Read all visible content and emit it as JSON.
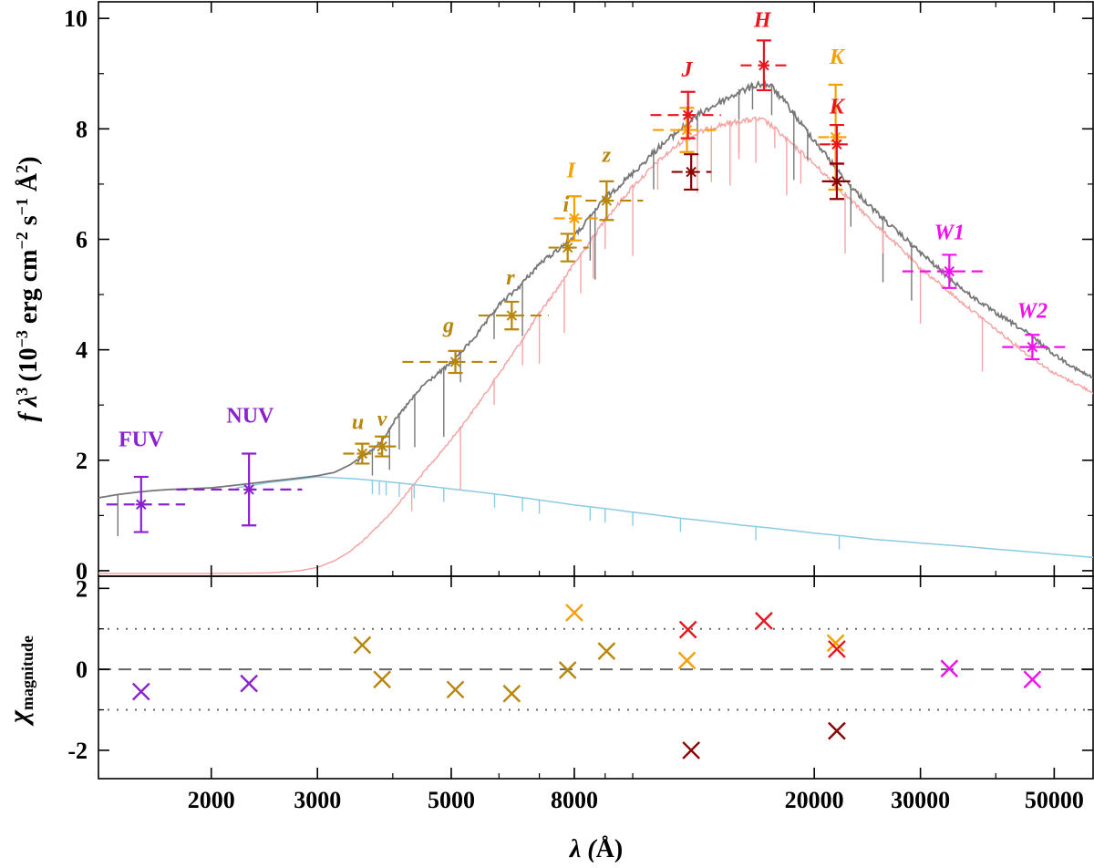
{
  "chart_data": {
    "type": "scatter",
    "description_free": true,
    "colors": {
      "uv": "#8b20d0",
      "optical": "#b8860b",
      "orange": "#f5a000",
      "red": "#e8141e",
      "darkred": "#8b0000",
      "magenta": "#ee11ee",
      "composite": "#777777",
      "cool": "#f4a4a4",
      "hot": "#8ccbe4",
      "guide": "#666666"
    },
    "xaxis": {
      "label_pre": "λ (",
      "label_unit": "Å",
      "label_post": ")",
      "scale": "log",
      "range": [
        1300,
        58000
      ],
      "ticks": [
        {
          "value": 2000,
          "label": "2000"
        },
        {
          "value": 3000,
          "label": "3000"
        },
        {
          "value": 5000,
          "label": "5000"
        },
        {
          "value": 8000,
          "label": "8000"
        },
        {
          "value": 20000,
          "label": "20000"
        },
        {
          "value": 30000,
          "label": "30000"
        },
        {
          "value": 50000,
          "label": "50000"
        }
      ]
    },
    "top_panel": {
      "ylabel": {
        "main": "f λ",
        "exp3": "3",
        "paren": "(10",
        "exp_neg3": "−3",
        "unit1": " erg cm",
        "exp_neg2": "−2",
        "unit2": " s",
        "exp_neg1": "−1",
        "unit3": " Å",
        "exp2": "2",
        "close": ")"
      },
      "ylim": [
        -0.1,
        10.3
      ],
      "yticks": [
        {
          "value": 0,
          "label": "0"
        },
        {
          "value": 2,
          "label": "2"
        },
        {
          "value": 4,
          "label": "4"
        },
        {
          "value": 6,
          "label": "6"
        },
        {
          "value": 8,
          "label": "8"
        },
        {
          "value": 10,
          "label": "10"
        }
      ],
      "models": [
        {
          "name": "composite",
          "color_key": "composite",
          "x": [
            1300,
            1350,
            1400,
            1450,
            1500,
            1600,
            1700,
            1800,
            2000,
            2200,
            2500,
            2800,
            3000,
            3200,
            3400,
            3500,
            3600,
            3700,
            3800,
            3900,
            4000,
            4200,
            4500,
            5000,
            5500,
            6000,
            6500,
            7000,
            7500,
            8000,
            8500,
            9000,
            10000,
            11000,
            12000,
            13000,
            14000,
            15000,
            16000,
            16500,
            17000,
            18000,
            19000,
            20000,
            21000,
            22000,
            23000,
            24000,
            25000,
            27000,
            30000,
            33000,
            36000,
            40000,
            45000,
            50000,
            55000,
            58000
          ],
          "y": [
            1.32,
            1.35,
            1.38,
            1.4,
            1.42,
            1.45,
            1.47,
            1.48,
            1.5,
            1.55,
            1.62,
            1.68,
            1.72,
            1.78,
            1.92,
            2.02,
            2.12,
            2.22,
            2.32,
            2.5,
            2.7,
            3.0,
            3.4,
            3.8,
            4.3,
            4.85,
            5.2,
            5.6,
            5.85,
            6.1,
            6.45,
            6.8,
            7.25,
            7.7,
            8.05,
            8.35,
            8.55,
            8.72,
            8.85,
            8.88,
            8.82,
            8.5,
            8.15,
            7.85,
            7.55,
            7.25,
            7.0,
            6.8,
            6.6,
            6.25,
            5.8,
            5.4,
            5.05,
            4.7,
            4.35,
            3.95,
            3.65,
            3.52
          ]
        },
        {
          "name": "cool-component",
          "color_key": "cool",
          "x": [
            1300,
            2000,
            2500,
            2800,
            3000,
            3200,
            3400,
            3600,
            3800,
            4000,
            4200,
            4500,
            5000,
            5500,
            6000,
            7000,
            8000,
            9000,
            10000,
            11000,
            12000,
            13000,
            14000,
            15000,
            16000,
            16500,
            17000,
            18000,
            20000,
            22000,
            25000,
            30000,
            35000,
            40000,
            45000,
            50000,
            58000
          ],
          "y": [
            -0.05,
            -0.05,
            -0.04,
            0.0,
            0.06,
            0.18,
            0.35,
            0.6,
            0.85,
            1.1,
            1.4,
            1.8,
            2.4,
            3.0,
            3.6,
            4.7,
            5.6,
            6.4,
            7.0,
            7.45,
            7.8,
            8.0,
            8.12,
            8.18,
            8.22,
            8.2,
            8.1,
            7.85,
            7.4,
            6.95,
            6.35,
            5.5,
            4.9,
            4.4,
            3.95,
            3.6,
            3.25
          ]
        },
        {
          "name": "hot-component",
          "color_key": "hot",
          "x": [
            2200,
            2500,
            3000,
            3500,
            4000,
            4500,
            5000,
            6000,
            7000,
            8000,
            10000,
            12000,
            15000,
            20000,
            25000,
            30000,
            40000,
            50000,
            58000
          ],
          "y": [
            1.5,
            1.6,
            1.7,
            1.66,
            1.6,
            1.54,
            1.48,
            1.38,
            1.28,
            1.19,
            1.06,
            0.95,
            0.83,
            0.68,
            0.57,
            0.5,
            0.39,
            0.3,
            0.24
          ]
        }
      ],
      "photometry": [
        {
          "band": "FUV",
          "color_key": "uv",
          "x": 1530,
          "y": 1.2,
          "yerr": 0.5,
          "xlo": 1340,
          "xhi": 1810,
          "label": "FUV",
          "label_italic": false,
          "lx": 1530,
          "ly": 2.25
        },
        {
          "band": "NUV",
          "color_key": "uv",
          "x": 2310,
          "y": 1.47,
          "yerr": 0.65,
          "xlo": 1750,
          "xhi": 2830,
          "label": "NUV",
          "label_italic": false,
          "lx": 2320,
          "ly": 2.68
        },
        {
          "band": "u",
          "color_key": "optical",
          "x": 3560,
          "y": 2.12,
          "yerr": 0.18,
          "xlo": 3310,
          "xhi": 3830,
          "label": "u",
          "label_italic": true,
          "lx": 3500,
          "ly": 2.57
        },
        {
          "band": "v",
          "color_key": "optical",
          "x": 3840,
          "y": 2.25,
          "yerr": 0.18,
          "xlo": 3650,
          "xhi": 4050,
          "label": "v",
          "label_italic": true,
          "lx": 3840,
          "ly": 2.62
        },
        {
          "band": "g",
          "color_key": "optical",
          "x": 5080,
          "y": 3.78,
          "yerr": 0.2,
          "xlo": 4150,
          "xhi": 5950,
          "label": "g",
          "label_italic": true,
          "lx": 4950,
          "ly": 4.32
        },
        {
          "band": "r",
          "color_key": "optical",
          "x": 6300,
          "y": 4.62,
          "yerr": 0.25,
          "xlo": 5550,
          "xhi": 7250,
          "label": "r",
          "label_italic": true,
          "lx": 6270,
          "ly": 5.18
        },
        {
          "band": "i",
          "color_key": "optical",
          "x": 7800,
          "y": 5.85,
          "yerr": 0.25,
          "xlo": 7250,
          "xhi": 8450,
          "label": "i",
          "label_italic": true,
          "lx": 7750,
          "ly": 6.5
        },
        {
          "band": "z",
          "color_key": "optical",
          "x": 9050,
          "y": 6.7,
          "yerr": 0.35,
          "xlo": 8350,
          "xhi": 10400,
          "label": "z",
          "label_italic": true,
          "lx": 9050,
          "ly": 7.4
        },
        {
          "band": "I",
          "color_key": "orange",
          "x": 8000,
          "y": 6.38,
          "yerr": 0.4,
          "xlo": 7400,
          "xhi": 8750,
          "label": "I",
          "label_italic": true,
          "lx": 7900,
          "ly": 7.12
        },
        {
          "band": "J-orange",
          "color_key": "orange",
          "x": 12300,
          "y": 7.98,
          "yerr": 0.4,
          "xlo": 10800,
          "xhi": 13800,
          "label": "",
          "label_italic": true,
          "lx": 12300,
          "ly": 0
        },
        {
          "band": "J",
          "color_key": "red",
          "x": 12350,
          "y": 8.25,
          "yerr": 0.42,
          "xlo": 10700,
          "xhi": 14000,
          "label": "J",
          "label_italic": true,
          "lx": 12300,
          "ly": 8.95
        },
        {
          "band": "J-dark",
          "color_key": "darkred",
          "x": 12500,
          "y": 7.22,
          "yerr": 0.32,
          "xlo": 11600,
          "xhi": 13500,
          "label": "",
          "label_italic": true,
          "lx": 12500,
          "ly": 0
        },
        {
          "band": "H",
          "color_key": "red",
          "x": 16500,
          "y": 9.15,
          "yerr": 0.45,
          "xlo": 15100,
          "xhi": 18000,
          "label": "H",
          "label_italic": true,
          "lx": 16400,
          "ly": 9.85
        },
        {
          "band": "K-orange",
          "color_key": "orange",
          "x": 21700,
          "y": 7.85,
          "yerr": 0.95,
          "xlo": 20300,
          "xhi": 23000,
          "label": "K",
          "label_italic": true,
          "lx": 21800,
          "ly": 9.18
        },
        {
          "band": "K",
          "color_key": "red",
          "x": 21800,
          "y": 7.72,
          "yerr": 0.35,
          "xlo": 20400,
          "xhi": 23200,
          "label": "K",
          "label_italic": true,
          "lx": 21800,
          "ly": 8.28
        },
        {
          "band": "K-dark",
          "color_key": "darkred",
          "x": 21800,
          "y": 7.05,
          "yerr": 0.32,
          "xlo": 20600,
          "xhi": 23000,
          "label": "",
          "label_italic": true,
          "lx": 21800,
          "ly": 0
        },
        {
          "band": "W1",
          "color_key": "magenta",
          "x": 33500,
          "y": 5.42,
          "yerr": 0.3,
          "xlo": 28000,
          "xhi": 39000,
          "label": "W1",
          "label_italic": true,
          "lx": 33500,
          "ly": 6.0
        },
        {
          "band": "W2",
          "color_key": "magenta",
          "x": 46000,
          "y": 4.05,
          "yerr": 0.22,
          "xlo": 41000,
          "xhi": 53000,
          "label": "W2",
          "label_italic": true,
          "lx": 46000,
          "ly": 4.58
        }
      ]
    },
    "bottom_panel": {
      "ylabel_main": "χ",
      "ylabel_sub": "magnitude",
      "ylim": [
        -2.7,
        2.3
      ],
      "yticks": [
        {
          "value": 2,
          "label": "2"
        },
        {
          "value": 0,
          "label": "0"
        },
        {
          "value": -2,
          "label": "-2"
        }
      ],
      "guides": [
        {
          "y": 1,
          "style": "dotted"
        },
        {
          "y": 0,
          "style": "dashed"
        },
        {
          "y": -1,
          "style": "dotted"
        }
      ],
      "residuals": [
        {
          "band": "FUV",
          "color_key": "uv",
          "x": 1530,
          "y": -0.55
        },
        {
          "band": "NUV",
          "color_key": "uv",
          "x": 2310,
          "y": -0.35
        },
        {
          "band": "u",
          "color_key": "optical",
          "x": 3560,
          "y": 0.6
        },
        {
          "band": "v",
          "color_key": "optical",
          "x": 3840,
          "y": -0.25
        },
        {
          "band": "g",
          "color_key": "optical",
          "x": 5080,
          "y": -0.5
        },
        {
          "band": "r",
          "color_key": "optical",
          "x": 6300,
          "y": -0.6
        },
        {
          "band": "i",
          "color_key": "optical",
          "x": 7800,
          "y": -0.02
        },
        {
          "band": "z",
          "color_key": "optical",
          "x": 9050,
          "y": 0.45
        },
        {
          "band": "I",
          "color_key": "orange",
          "x": 8000,
          "y": 1.4
        },
        {
          "band": "J-orange",
          "color_key": "orange",
          "x": 12300,
          "y": 0.22
        },
        {
          "band": "J",
          "color_key": "red",
          "x": 12350,
          "y": 0.98
        },
        {
          "band": "J-dark",
          "color_key": "darkred",
          "x": 12500,
          "y": -2.0
        },
        {
          "band": "H",
          "color_key": "red",
          "x": 16500,
          "y": 1.2
        },
        {
          "band": "K-orange",
          "color_key": "orange",
          "x": 21700,
          "y": 0.65
        },
        {
          "band": "K",
          "color_key": "red",
          "x": 21800,
          "y": 0.5
        },
        {
          "band": "K-dark",
          "color_key": "darkred",
          "x": 21800,
          "y": -1.52
        },
        {
          "band": "W1",
          "color_key": "magenta",
          "x": 33500,
          "y": 0.02
        },
        {
          "band": "W2",
          "color_key": "magenta",
          "x": 46000,
          "y": -0.25
        }
      ]
    }
  }
}
